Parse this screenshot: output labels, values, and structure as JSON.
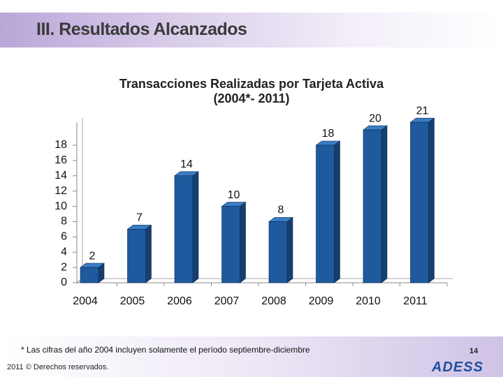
{
  "header": {
    "title": "III. Resultados  Alcanzados"
  },
  "chart_data": {
    "type": "bar3d",
    "title": "Transacciones Realizadas por Tarjeta Activa",
    "subtitle": "(2004*- 2011)",
    "categories": [
      "2004",
      "2005",
      "2006",
      "2007",
      "2008",
      "2009",
      "2010",
      "2011"
    ],
    "values": [
      2,
      7,
      14,
      10,
      8,
      18,
      20,
      21
    ],
    "color": "#1f5a9e",
    "ylim": [
      0,
      21
    ],
    "yticks": [
      0,
      2,
      4,
      6,
      8,
      10,
      12,
      14,
      16,
      18
    ]
  },
  "footer": {
    "note": "* Las cifras del año 2004 incluyen solamente el período septiembre-diciembre",
    "copyright": "2011 © Derechos reservados.",
    "page": "14",
    "logo": "ADESS"
  }
}
